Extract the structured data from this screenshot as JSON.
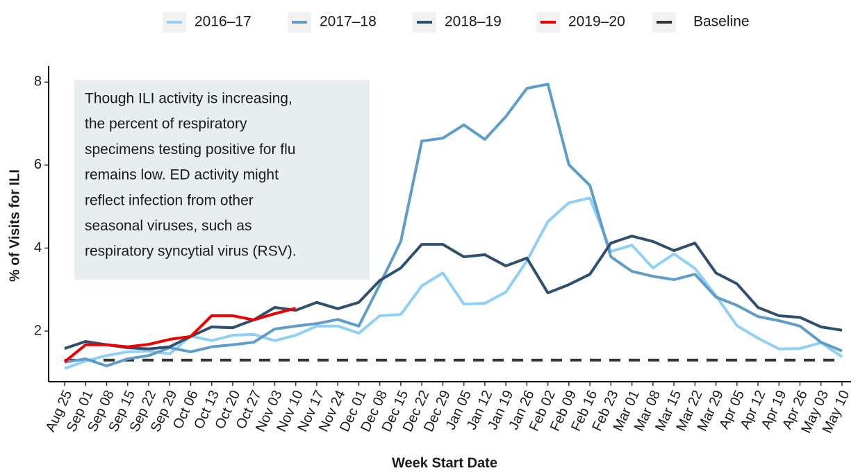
{
  "chart_data": {
    "type": "line",
    "x_label": "Week Start Date",
    "y_label": "% of Visits for ILI",
    "annotation": [
      "Though ILI activity is increasing,",
      "the percent of respiratory",
      "specimens testing positive for flu",
      "remains low. ED activity might",
      "reflect infection from other",
      "seasonal viruses, such as",
      "respiratory syncytial virus (RSV)."
    ],
    "categories": [
      "Aug 25",
      "Sep 01",
      "Sep 08",
      "Sep 15",
      "Sep 22",
      "Sep 29",
      "Oct 06",
      "Oct 13",
      "Oct 20",
      "Oct 27",
      "Nov 03",
      "Nov 10",
      "Nov 17",
      "Nov 24",
      "Dec 01",
      "Dec 08",
      "Dec 15",
      "Dec 22",
      "Dec 29",
      "Jan 05",
      "Jan 12",
      "Jan 19",
      "Jan 26",
      "Feb 02",
      "Feb 09",
      "Feb 16",
      "Feb 23",
      "Mar 01",
      "Mar 08",
      "Mar 15",
      "Mar 22",
      "Mar 29",
      "Apr 05",
      "Apr 12",
      "Apr 19",
      "Apr 26",
      "May 03",
      "May 10"
    ],
    "series": [
      {
        "name": "2016–17",
        "color": "#8fd0f7",
        "values": [
          1.1,
          1.28,
          1.41,
          1.5,
          1.52,
          1.45,
          1.88,
          1.77,
          1.9,
          1.92,
          1.77,
          1.9,
          2.12,
          2.12,
          1.95,
          2.37,
          2.4,
          3.09,
          3.4,
          2.65,
          2.67,
          2.94,
          3.69,
          4.64,
          5.09,
          5.21,
          3.92,
          4.07,
          3.52,
          3.86,
          3.51,
          2.85,
          2.13,
          1.83,
          1.57,
          1.58,
          1.72,
          1.38
        ]
      },
      {
        "name": "2017–18",
        "color": "#5e9cc9",
        "values": [
          1.25,
          1.33,
          1.16,
          1.33,
          1.41,
          1.6,
          1.5,
          1.62,
          1.67,
          1.73,
          2.05,
          2.12,
          2.18,
          2.28,
          2.12,
          3.12,
          4.16,
          6.58,
          6.65,
          6.97,
          6.62,
          7.17,
          7.85,
          7.95,
          6.01,
          5.51,
          3.79,
          3.44,
          3.32,
          3.24,
          3.37,
          2.82,
          2.62,
          2.35,
          2.25,
          2.12,
          1.73,
          1.52
        ]
      },
      {
        "name": "2018–19",
        "color": "#2e4f6e",
        "values": [
          1.58,
          1.75,
          1.67,
          1.6,
          1.57,
          1.62,
          1.87,
          2.1,
          2.08,
          2.27,
          2.57,
          2.5,
          2.69,
          2.54,
          2.69,
          3.22,
          3.52,
          4.09,
          4.09,
          3.79,
          3.84,
          3.57,
          3.76,
          2.92,
          3.12,
          3.37,
          4.12,
          4.29,
          4.16,
          3.94,
          4.12,
          3.4,
          3.14,
          2.57,
          2.37,
          2.33,
          2.1,
          2.02
        ]
      },
      {
        "name": "2019–20",
        "color": "#ee0000",
        "values": [
          1.26,
          1.67,
          1.67,
          1.62,
          1.68,
          1.8,
          1.87,
          2.37,
          2.37,
          2.27,
          2.42,
          2.55,
          null,
          null,
          null,
          null,
          null,
          null,
          null,
          null,
          null,
          null,
          null,
          null,
          null,
          null,
          null,
          null,
          null,
          null,
          null,
          null,
          null,
          null,
          null,
          null,
          null,
          null
        ]
      }
    ],
    "baseline": {
      "name": "Baseline",
      "value": 1.3,
      "color": "#333333"
    },
    "ylim": [
      0.78,
      8.39
    ],
    "yticks": [
      2,
      4,
      6,
      8
    ]
  }
}
